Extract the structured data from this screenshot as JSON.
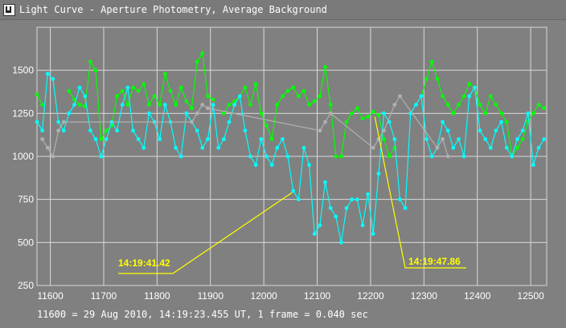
{
  "window": {
    "title": "Light Curve - Aperture Photometry, Average Background",
    "icon": "graph-window-icon"
  },
  "footer": "11600 = 29 Aug 2010, 14:19:23.455 UT, 1 frame = 0.040 sec",
  "chart_data": {
    "type": "line",
    "title": "",
    "xlabel": "",
    "ylabel": "",
    "xlim": [
      11575,
      12530
    ],
    "ylim": [
      250,
      1750
    ],
    "x_ticks": [
      11600,
      11700,
      11800,
      11900,
      12000,
      12100,
      12200,
      12300,
      12400,
      12500
    ],
    "y_ticks": [
      250,
      500,
      750,
      1000,
      1250,
      1500
    ],
    "grid": true,
    "legend": "none",
    "background": "#808080",
    "grid_color": "#d9d9d9",
    "series": [
      {
        "color": "#00ff00",
        "x": [
          11575,
          11585,
          11595,
          11605,
          11615,
          11625,
          11635,
          11645,
          11655,
          11665,
          11675,
          11685,
          11695,
          11705,
          11715,
          11725,
          11735,
          11745,
          11755,
          11765,
          11775,
          11785,
          11795,
          11805,
          11815,
          11825,
          11835,
          11845,
          11855,
          11865,
          11875,
          11885,
          11895,
          11905,
          11915,
          11925,
          11935,
          11945,
          11955,
          11965,
          11975,
          11985,
          11995,
          12005,
          12015,
          12025,
          12035,
          12045,
          12055,
          12065,
          12075,
          12085,
          12095,
          12105,
          12115,
          12125,
          12135,
          12145,
          12155,
          12165,
          12175,
          12185,
          12195,
          12205,
          12215,
          12225,
          12235,
          12245,
          12255,
          12265,
          12275,
          12285,
          12295,
          12305,
          12315,
          12325,
          12335,
          12345,
          12355,
          12365,
          12375,
          12385,
          12395,
          12405,
          12415,
          12425,
          12435,
          12445,
          12455,
          12465,
          12475,
          12485,
          12495,
          12505,
          12515,
          12525
        ],
        "y": [
          1360,
          1300,
          null,
          null,
          null,
          null,
          1380,
          1330,
          1300,
          1290,
          1550,
          1500,
          1100,
          1150,
          1180,
          1350,
          1380,
          1300,
          1400,
          1380,
          1420,
          1300,
          1350,
          1300,
          1480,
          1380,
          1300,
          1400,
          1320,
          1280,
          1550,
          1600,
          1350,
          1330,
          null,
          1250,
          1300,
          1320,
          1350,
          1400,
          1300,
          1420,
          1250,
          1180,
          1100,
          1300,
          1350,
          1380,
          1400,
          1350,
          1380,
          1300,
          1320,
          1350,
          1520,
          1300,
          1000,
          1000,
          1200,
          1250,
          1280,
          1220,
          1230,
          1260,
          1240,
          1100,
          1000,
          1050,
          null,
          null,
          null,
          null,
          1350,
          1450,
          1550,
          1450,
          1350,
          1300,
          1250,
          1300,
          1350,
          1420,
          1400,
          1300,
          1250,
          1350,
          1300,
          1250,
          1200,
          1000,
          1050,
          1100,
          1200,
          1250,
          1300,
          1280
        ]
      },
      {
        "color": "#00ffff",
        "x": [
          11575,
          11585,
          11595,
          11605,
          11615,
          11625,
          11635,
          11645,
          11655,
          11665,
          11675,
          11685,
          11695,
          11705,
          11715,
          11725,
          11735,
          11745,
          11755,
          11765,
          11775,
          11785,
          11795,
          11805,
          11815,
          11825,
          11835,
          11845,
          11855,
          11865,
          11875,
          11885,
          11895,
          11905,
          11915,
          11925,
          11935,
          11945,
          11955,
          11965,
          11975,
          11985,
          11995,
          12005,
          12015,
          12025,
          12035,
          12045,
          12055,
          12065,
          12075,
          12085,
          12095,
          12105,
          12115,
          12125,
          12135,
          12145,
          12155,
          12165,
          12175,
          12185,
          12195,
          12205,
          12215,
          12225,
          12235,
          12245,
          12255,
          12265,
          12275,
          12285,
          12295,
          12305,
          12315,
          12325,
          12335,
          12345,
          12355,
          12365,
          12375,
          12385,
          12395,
          12405,
          12415,
          12425,
          12435,
          12445,
          12455,
          12465,
          12475,
          12485,
          12495,
          12505,
          12515,
          12525
        ],
        "y": [
          1200,
          1150,
          1480,
          1450,
          1200,
          1150,
          1250,
          1300,
          1400,
          1350,
          1150,
          1100,
          1000,
          1100,
          1200,
          1150,
          1300,
          1400,
          1150,
          1100,
          1050,
          1250,
          1200,
          1100,
          1300,
          1200,
          1050,
          1000,
          1250,
          1200,
          1150,
          1050,
          1100,
          1300,
          1050,
          1100,
          1200,
          1300,
          1350,
          1150,
          1000,
          950,
          1100,
          1000,
          950,
          1050,
          1100,
          1000,
          800,
          750,
          1050,
          950,
          550,
          600,
          850,
          700,
          650,
          500,
          700,
          750,
          750,
          600,
          780,
          550,
          900,
          1250,
          1200,
          1100,
          750,
          700,
          1250,
          1300,
          1350,
          1100,
          1000,
          1050,
          1200,
          1150,
          1050,
          1100,
          1000,
          1350,
          1400,
          1150,
          1100,
          1050,
          1150,
          1200,
          1050,
          1000,
          1100,
          1150,
          1250,
          950,
          1050,
          1100
        ]
      },
      {
        "color": "#b0b0b0",
        "x": [
          11585,
          11595,
          11605,
          11615,
          11625,
          11865,
          11875,
          11885,
          11895,
          12105,
          12115,
          12125,
          12205,
          12215,
          12225,
          12245,
          12255,
          12325,
          12335,
          12345
        ],
        "y": [
          1100,
          1050,
          1000,
          1150,
          1200,
          1200,
          1250,
          1300,
          1280,
          1150,
          1200,
          1250,
          1050,
          1100,
          1150,
          1300,
          1350,
          1050,
          1100,
          1000
        ]
      }
    ],
    "annotations": [
      {
        "text": "14:19:41.42",
        "x": 12053,
        "y": 790
      },
      {
        "text": "14:19:47.86",
        "x": 12208,
        "y": 1230
      }
    ],
    "annotation_color": "#ffff00"
  }
}
